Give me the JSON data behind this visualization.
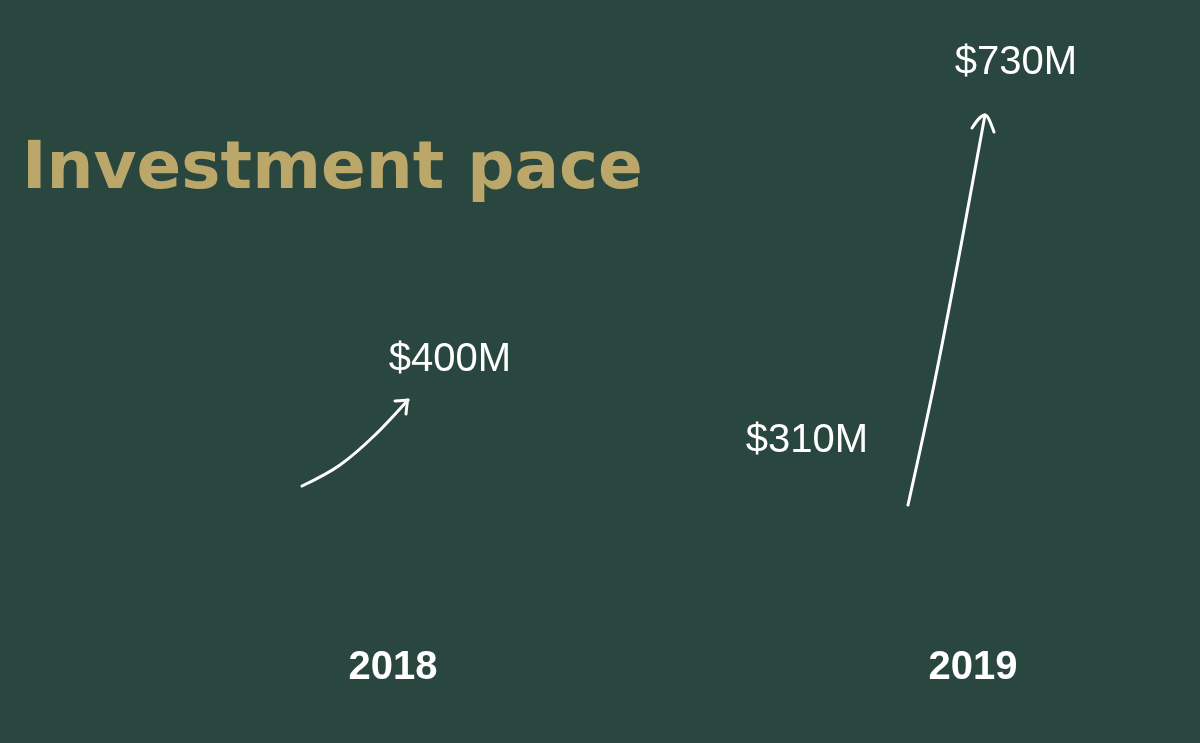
{
  "chart_data": {
    "type": "other",
    "title": "Investment pace",
    "categories": [
      "2018",
      "2019"
    ],
    "series": [
      {
        "values": [
          null,
          310
        ],
        "value_labels": [
          null,
          "$310M"
        ]
      },
      {
        "values": [
          400,
          730
        ],
        "value_labels": [
          "$400M",
          "$730M"
        ]
      }
    ]
  }
}
